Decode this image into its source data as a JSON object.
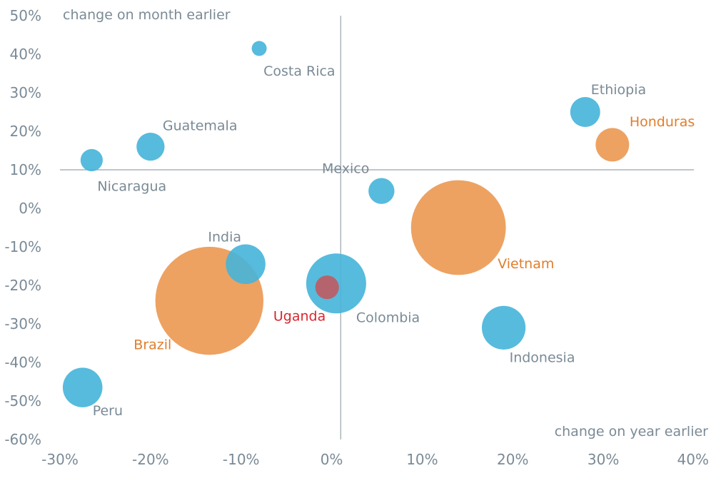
{
  "chart_data": {
    "type": "scatter",
    "subtype": "bubble",
    "title": "",
    "xlabel": "change on year earlier",
    "ylabel": "change on month earlier",
    "xlim": [
      -30,
      40
    ],
    "ylim": [
      -60,
      50
    ],
    "x_ticks": [
      -30,
      -20,
      -10,
      0,
      10,
      20,
      30,
      40
    ],
    "y_ticks": [
      -60,
      -50,
      -40,
      -30,
      -20,
      -10,
      0,
      10,
      20,
      30,
      40,
      50
    ],
    "x_tick_labels": [
      "-30%",
      "-20%",
      "-10%",
      "0%",
      "10%",
      "20%",
      "30%",
      "40%"
    ],
    "y_tick_labels": [
      "-60%",
      "-50%",
      "-40%",
      "-30%",
      "-20%",
      "-10%",
      "0%",
      "10%",
      "20%",
      "30%",
      "40%",
      "50%"
    ],
    "reference_lines": {
      "x": 1,
      "y": 10
    },
    "colors": {
      "blue": "#45b4d9",
      "orange": "#eb9a55",
      "red": "#c6555a",
      "axis": "#9aa4ab",
      "text": "#7a8a96",
      "orange_text": "#e07d2c",
      "red_text": "#d9262e"
    },
    "points": [
      {
        "name": "Costa Rica",
        "x": -8,
        "y": 41.5,
        "size": 1,
        "color": "blue"
      },
      {
        "name": "Ethiopia",
        "x": 28,
        "y": 25,
        "size": 4,
        "color": "blue"
      },
      {
        "name": "Honduras",
        "x": 31,
        "y": 16.5,
        "size": 5,
        "color": "orange"
      },
      {
        "name": "Guatemala",
        "x": -20,
        "y": 16,
        "size": 3.5,
        "color": "blue"
      },
      {
        "name": "Nicaragua",
        "x": -26.5,
        "y": 12.5,
        "size": 2.2,
        "color": "blue"
      },
      {
        "name": "Mexico",
        "x": 5.5,
        "y": 4.5,
        "size": 3,
        "color": "blue"
      },
      {
        "name": "Vietnam",
        "x": 14,
        "y": -5,
        "size": 40,
        "color": "orange"
      },
      {
        "name": "India",
        "x": -9.5,
        "y": -14.5,
        "size": 7,
        "color": "blue"
      },
      {
        "name": "Colombia",
        "x": 0.5,
        "y": -19.5,
        "size": 16,
        "color": "blue"
      },
      {
        "name": "Uganda",
        "x": -0.5,
        "y": -20.5,
        "size": 2.5,
        "color": "red"
      },
      {
        "name": "Brazil",
        "x": -13.5,
        "y": -24,
        "size": 52,
        "color": "orange"
      },
      {
        "name": "Indonesia",
        "x": 19,
        "y": -31,
        "size": 8.5,
        "color": "blue"
      },
      {
        "name": "Peru",
        "x": -27.5,
        "y": -46.5,
        "size": 7,
        "color": "blue"
      }
    ]
  }
}
